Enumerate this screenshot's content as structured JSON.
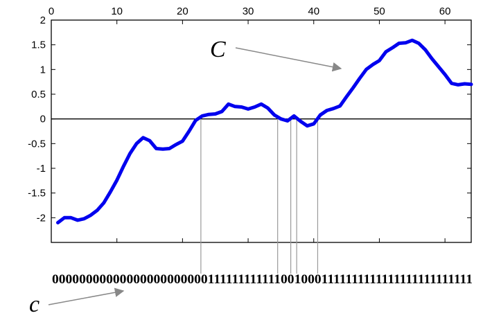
{
  "chart_data": {
    "type": "line",
    "xlim": [
      0,
      64
    ],
    "ylim": [
      -2.5,
      2
    ],
    "x_ticks": [
      0,
      10,
      20,
      30,
      40,
      50,
      60
    ],
    "y_ticks": [
      2,
      1.5,
      1,
      0.5,
      0,
      -0.5,
      -1,
      -1.5,
      -2
    ],
    "x_tick_labels": [
      "0",
      "10",
      "20",
      "30",
      "40",
      "50",
      "60"
    ],
    "y_tick_labels": [
      "2",
      "1.5",
      "1",
      "0.5",
      "0",
      "-0.5",
      "-1",
      "-1.5",
      "-2"
    ],
    "zero_line": true,
    "grid": false,
    "series": [
      {
        "color": "#0000ee",
        "x": [
          1,
          2,
          3,
          4,
          5,
          6,
          7,
          8,
          9,
          10,
          11,
          12,
          13,
          14,
          15,
          16,
          17,
          18,
          19,
          20,
          21,
          22,
          23,
          24,
          25,
          26,
          27,
          28,
          29,
          30,
          31,
          32,
          33,
          34,
          35,
          36,
          37,
          38,
          39,
          40,
          41,
          42,
          43,
          44,
          45,
          46,
          47,
          48,
          49,
          50,
          51,
          52,
          53,
          54,
          55,
          56,
          57,
          58,
          59,
          60,
          61,
          62,
          63,
          64
        ],
        "y": [
          -2.1,
          -2.0,
          -2.0,
          -2.05,
          -2.02,
          -1.95,
          -1.85,
          -1.7,
          -1.48,
          -1.24,
          -0.96,
          -0.7,
          -0.5,
          -0.38,
          -0.44,
          -0.6,
          -0.61,
          -0.6,
          -0.52,
          -0.45,
          -0.25,
          -0.03,
          0.06,
          0.09,
          0.1,
          0.15,
          0.3,
          0.25,
          0.24,
          0.2,
          0.24,
          0.3,
          0.22,
          0.08,
          0.0,
          -0.04,
          0.06,
          -0.05,
          -0.14,
          -0.1,
          0.08,
          0.17,
          0.21,
          0.26,
          0.45,
          0.63,
          0.82,
          1.0,
          1.1,
          1.18,
          1.36,
          1.44,
          1.53,
          1.54,
          1.59,
          1.53,
          1.4,
          1.22,
          1.06,
          0.9,
          0.72,
          0.69,
          0.71,
          0.7
        ]
      }
    ],
    "crossings_x": [
      22.8,
      34.5,
      36.5,
      37.4,
      40.6
    ],
    "bit_string": "000000000000000000000001111111111110010001111111111111111111111111",
    "annotation_curve": "C",
    "annotation_bits": "c"
  }
}
